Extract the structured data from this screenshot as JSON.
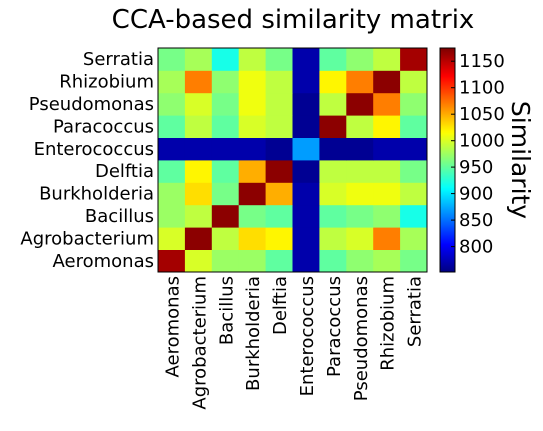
{
  "chart_data": {
    "type": "heatmap",
    "title": "CCA-based similarity matrix",
    "colorbar_label": "Similarity",
    "colormap": "jet",
    "vmin": 752,
    "vmax": 1175,
    "colorbar_ticks": [
      800,
      850,
      900,
      950,
      1000,
      1050,
      1100,
      1150
    ],
    "labels": [
      "Aeromonas",
      "Agrobacterium",
      "Bacillus",
      "Burkholderia",
      "Delftia",
      "Enterococcus",
      "Paracoccus",
      "Pseudomonas",
      "Rhizobium",
      "Serratia"
    ],
    "row_order": "Aeromonas at bottom, Serratia at top",
    "values": [
      [
        1160,
        1000,
        975,
        975,
        950,
        770,
        950,
        970,
        980,
        960
      ],
      [
        1000,
        1170,
        990,
        1030,
        1020,
        770,
        990,
        1000,
        1070,
        980
      ],
      [
        975,
        990,
        1170,
        960,
        950,
        770,
        950,
        960,
        970,
        920
      ],
      [
        975,
        1030,
        960,
        1170,
        1050,
        770,
        1000,
        1010,
        1010,
        990
      ],
      [
        950,
        1020,
        950,
        1050,
        1170,
        760,
        990,
        990,
        990,
        960
      ],
      [
        770,
        770,
        770,
        770,
        760,
        870,
        760,
        760,
        770,
        770
      ],
      [
        950,
        990,
        950,
        1000,
        990,
        760,
        1170,
        990,
        1020,
        950
      ],
      [
        970,
        1000,
        960,
        1010,
        990,
        760,
        990,
        1170,
        1070,
        970
      ],
      [
        980,
        1070,
        970,
        1010,
        990,
        770,
        1020,
        1070,
        1170,
        990
      ],
      [
        960,
        980,
        920,
        990,
        960,
        770,
        950,
        970,
        990,
        1160
      ]
    ]
  }
}
